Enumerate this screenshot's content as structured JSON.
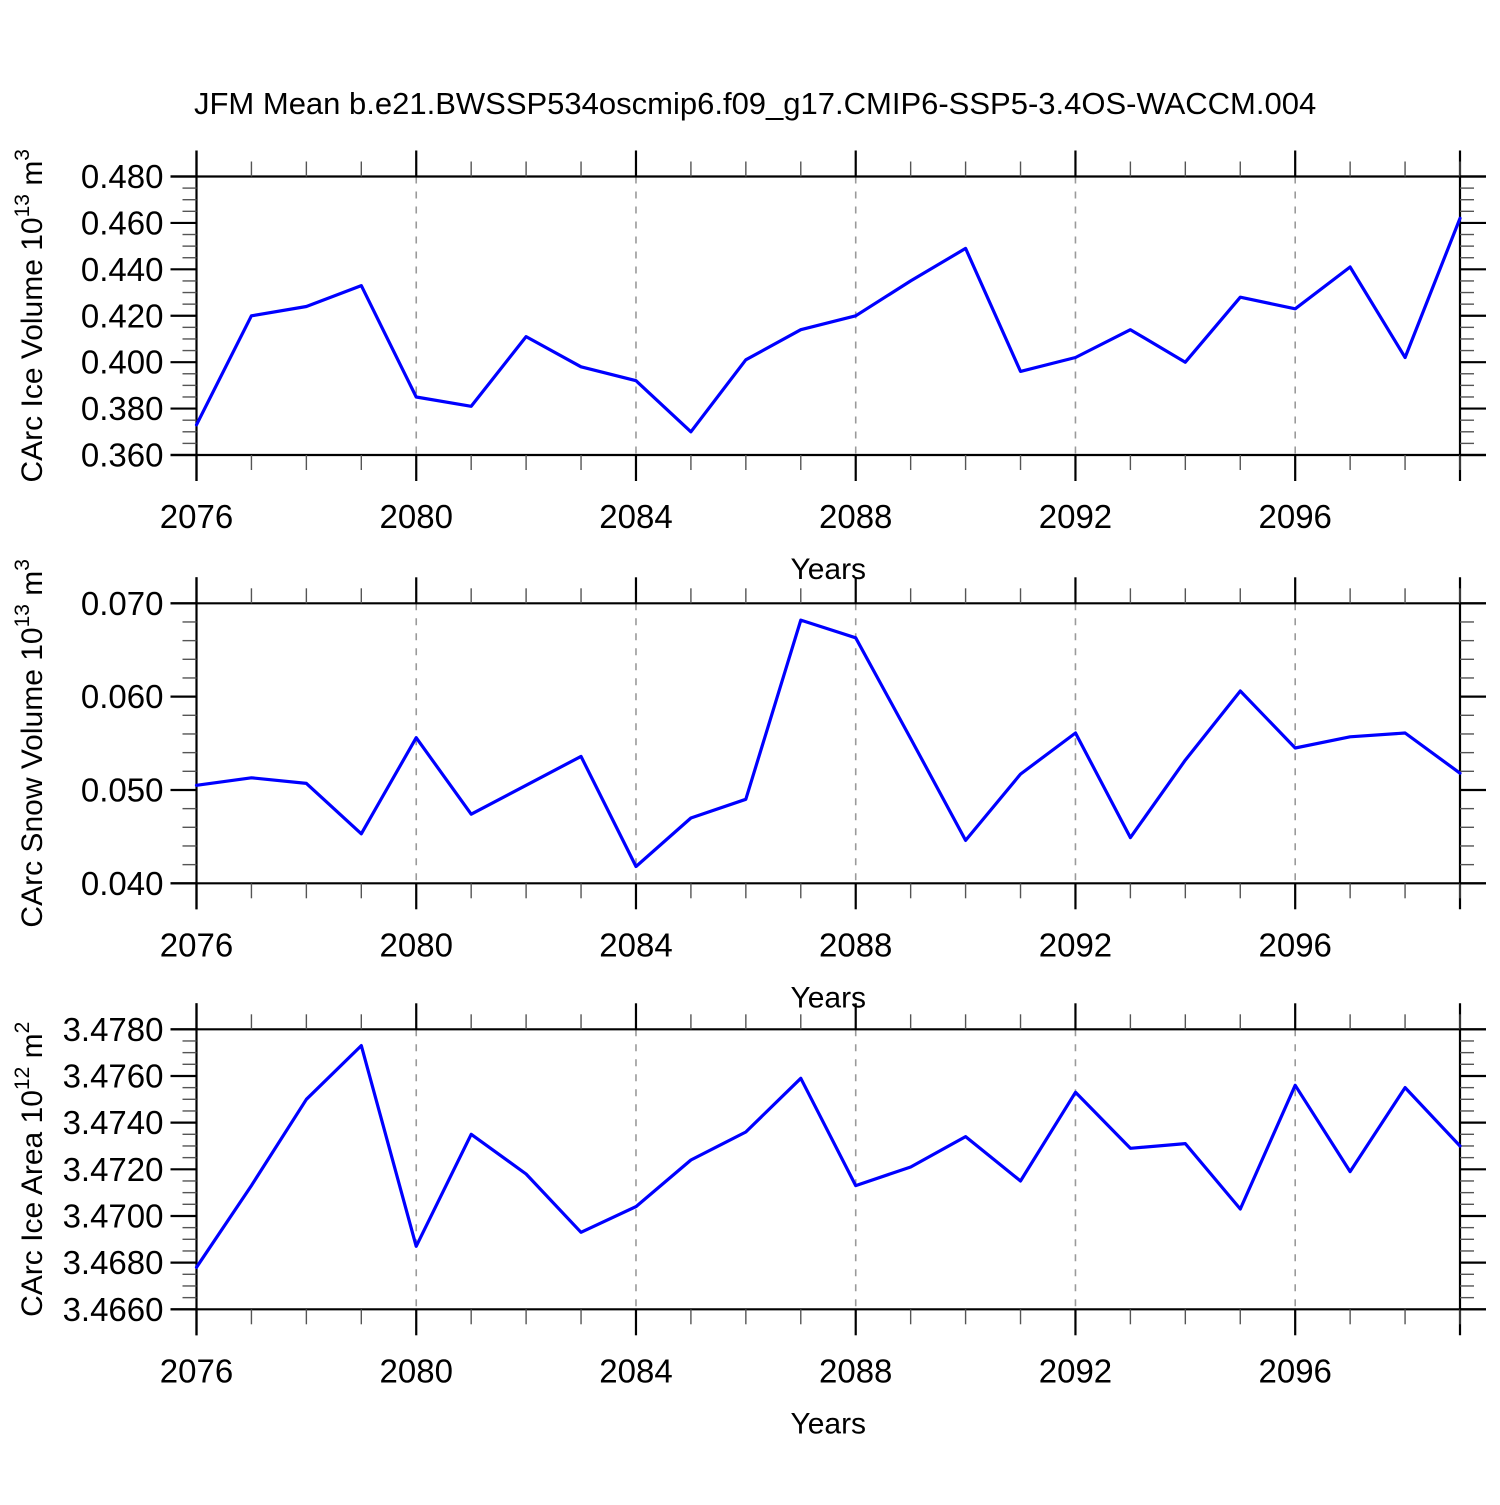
{
  "title": "JFM Mean b.e21.BWSSP534oscmip6.f09_g17.CMIP6-SSP5-3.4OS-WACCM.004",
  "colors": {
    "line": "#0000ff",
    "grid": "#9a9a9a",
    "frame": "#000000",
    "minor_tick": "#555555"
  },
  "chart_data": [
    {
      "type": "line",
      "name": "carc-ice-volume",
      "ylabel": "CArc Ice Volume 10^13 m^3",
      "xlabel": "Years",
      "xlim": [
        2076,
        2099
      ],
      "ylim": [
        0.36,
        0.48
      ],
      "x": [
        2076,
        2077,
        2078,
        2079,
        2080,
        2081,
        2082,
        2083,
        2084,
        2085,
        2086,
        2087,
        2088,
        2089,
        2090,
        2091,
        2092,
        2093,
        2094,
        2095,
        2096,
        2097,
        2098,
        2099
      ],
      "values": [
        0.373,
        0.42,
        0.424,
        0.433,
        0.385,
        0.381,
        0.411,
        0.398,
        0.392,
        0.37,
        0.401,
        0.414,
        0.42,
        0.435,
        0.449,
        0.396,
        0.402,
        0.414,
        0.4,
        0.428,
        0.423,
        0.441,
        0.402,
        0.462
      ],
      "ytick_labels": [
        "0.360",
        "0.380",
        "0.400",
        "0.420",
        "0.440",
        "0.460",
        "0.480"
      ],
      "y_minor_step": 0.005,
      "xticks": [
        2076,
        2080,
        2084,
        2088,
        2092,
        2096
      ],
      "xtick_labels": [
        "2076",
        "2080",
        "2084",
        "2088",
        "2092",
        "2096"
      ],
      "x_minor_step": 1,
      "grid_x": [
        2080,
        2084,
        2088,
        2092,
        2096
      ],
      "grid_style": "vertical-dashed"
    },
    {
      "type": "line",
      "name": "carc-snow-volume",
      "ylabel": "CArc Snow Volume 10^13 m^3",
      "xlabel": "Years",
      "xlim": [
        2076,
        2099
      ],
      "ylim": [
        0.04,
        0.07
      ],
      "x": [
        2076,
        2077,
        2078,
        2079,
        2080,
        2081,
        2082,
        2083,
        2084,
        2085,
        2086,
        2087,
        2088,
        2089,
        2090,
        2091,
        2092,
        2093,
        2094,
        2095,
        2096,
        2097,
        2098,
        2099
      ],
      "values": [
        0.0505,
        0.0513,
        0.0507,
        0.0453,
        0.0556,
        0.0474,
        0.0505,
        0.0536,
        0.0418,
        0.047,
        0.049,
        0.0682,
        0.0663,
        0.0555,
        0.0446,
        0.0517,
        0.0561,
        0.0449,
        0.0532,
        0.0606,
        0.0545,
        0.0557,
        0.0561,
        0.0518
      ],
      "ytick_labels": [
        "0.040",
        "0.050",
        "0.060",
        "0.070"
      ],
      "y_minor_step": 0.002,
      "xticks": [
        2076,
        2080,
        2084,
        2088,
        2092,
        2096
      ],
      "xtick_labels": [
        "2076",
        "2080",
        "2084",
        "2088",
        "2092",
        "2096"
      ],
      "x_minor_step": 1,
      "grid_x": [
        2080,
        2084,
        2088,
        2092,
        2096
      ],
      "grid_style": "vertical-dashed"
    },
    {
      "type": "line",
      "name": "carc-ice-area",
      "ylabel": "CArc Ice Area 10^12 m^2",
      "xlabel": "Years",
      "xlim": [
        2076,
        2099
      ],
      "ylim": [
        3.466,
        3.478
      ],
      "x": [
        2076,
        2077,
        2078,
        2079,
        2080,
        2081,
        2082,
        2083,
        2084,
        2085,
        2086,
        2087,
        2088,
        2089,
        2090,
        2091,
        2092,
        2093,
        2094,
        2095,
        2096,
        2097,
        2098,
        2099
      ],
      "values": [
        3.4678,
        3.4713,
        3.475,
        3.4773,
        3.4687,
        3.4735,
        3.4718,
        3.4693,
        3.4704,
        3.4724,
        3.4736,
        3.4759,
        3.4713,
        3.4721,
        3.4734,
        3.4715,
        3.4753,
        3.4729,
        3.4731,
        3.4703,
        3.4756,
        3.4719,
        3.4755,
        3.473
      ],
      "ytick_labels": [
        "3.4660",
        "3.4680",
        "3.4700",
        "3.4720",
        "3.4740",
        "3.4760",
        "3.4780"
      ],
      "y_minor_step": 0.0005,
      "xticks": [
        2076,
        2080,
        2084,
        2088,
        2092,
        2096
      ],
      "xtick_labels": [
        "2076",
        "2080",
        "2084",
        "2088",
        "2092",
        "2096"
      ],
      "x_minor_step": 1,
      "grid_x": [
        2080,
        2084,
        2088,
        2092,
        2096
      ],
      "grid_style": "vertical-dashed"
    }
  ]
}
